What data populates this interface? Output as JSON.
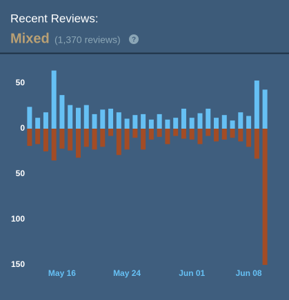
{
  "header": {
    "title": "Recent Reviews:",
    "summary": "Mixed",
    "count": "(1,370 reviews)",
    "help": "?"
  },
  "chart_data": {
    "type": "bar",
    "categories": [
      null,
      null,
      null,
      null,
      "May 16",
      null,
      null,
      null,
      null,
      null,
      null,
      null,
      "May 24",
      null,
      null,
      null,
      null,
      null,
      null,
      null,
      "Jun 01",
      null,
      null,
      null,
      null,
      null,
      null,
      "Jun 08",
      null,
      null
    ],
    "series": [
      {
        "color": "#66c0f4",
        "values": [
          24,
          12,
          18,
          64,
          37,
          26,
          23,
          26,
          16,
          21,
          22,
          18,
          11,
          15,
          16,
          10,
          16,
          10,
          12,
          22,
          12,
          17,
          22,
          12,
          15,
          9,
          18,
          14,
          53,
          43
        ]
      },
      {
        "color": "#a34c25",
        "values": [
          -19,
          -17,
          -25,
          -35,
          -22,
          -24,
          -32,
          -20,
          -23,
          -20,
          -8,
          -29,
          -23,
          -10,
          -23,
          -12,
          -9,
          -17,
          -8,
          -11,
          -12,
          -17,
          -8,
          -14,
          -12,
          -10,
          -14,
          -20,
          -33,
          -150
        ]
      }
    ],
    "ylim": [
      -150,
      70
    ],
    "yticks": [
      50,
      0,
      {
        "value": -50,
        "label": "50"
      },
      {
        "value": -100,
        "label": "100"
      },
      {
        "value": -150,
        "label": "150"
      }
    ]
  }
}
